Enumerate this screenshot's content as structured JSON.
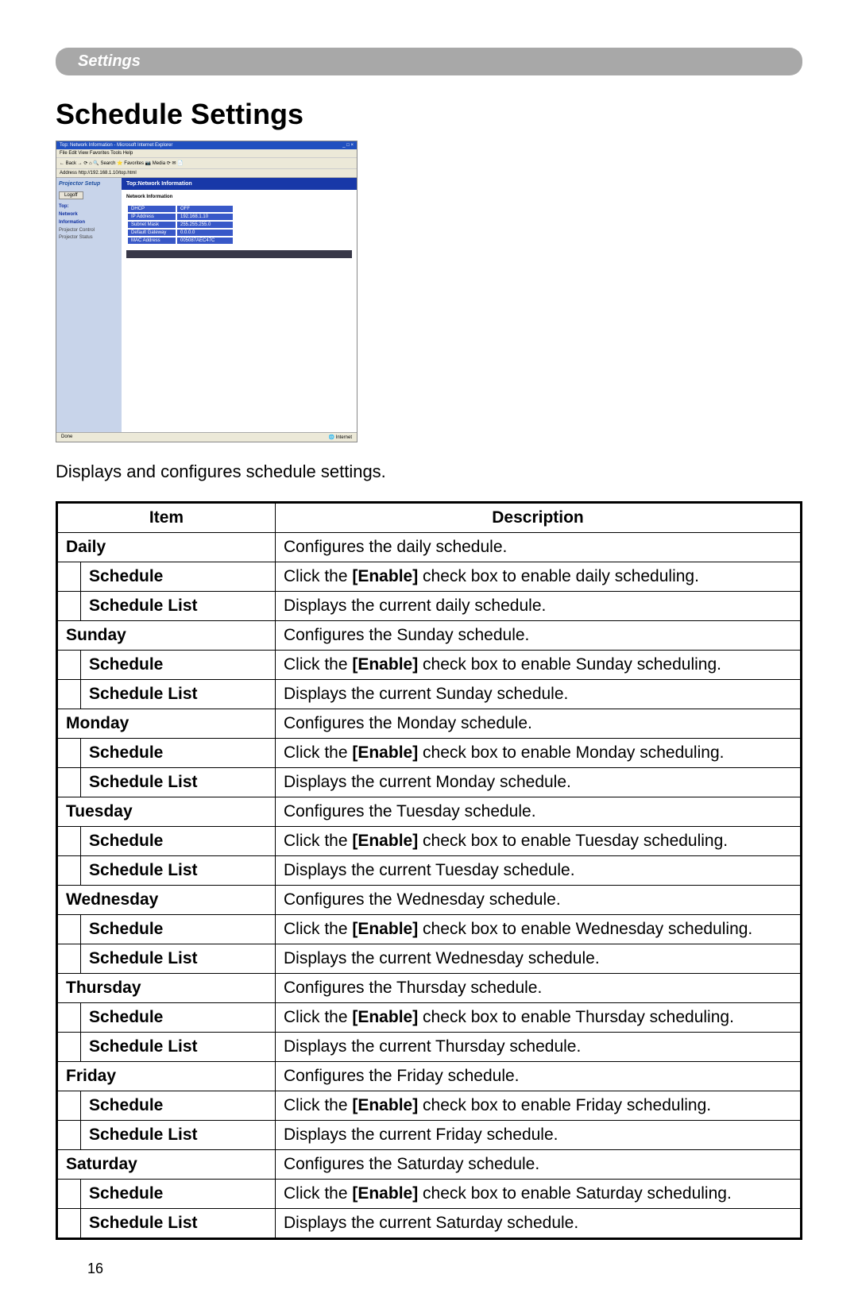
{
  "header_bar": "Settings",
  "title": "Schedule Settings",
  "intro": "Displays and configures schedule settings.",
  "screenshot": {
    "titlebar": "Top: Network Information - Microsoft Internet Explorer",
    "menubar": "File  Edit  View  Favorites  Tools  Help",
    "toolbar": "← Back  →  ⟳  ⌂  🔍 Search  ⭐ Favorites  📷 Media  ⟳  ✉  📄",
    "addressbar": "Address  http://192.168.1.10/top.html",
    "sidebar_title": "Projector Setup",
    "logoff": "Logoff",
    "nav_active_1": "Top:",
    "nav_active_2": "Network",
    "nav_active_3": "Information",
    "nav_item_1": "Projector Control",
    "nav_item_2": "Projector Status",
    "main_header": "Top:Network Information",
    "main_sub": "Network Information",
    "info_rows": [
      {
        "label": "DHCP",
        "value": "OFF"
      },
      {
        "label": "IP Address",
        "value": "192.168.1.10"
      },
      {
        "label": "Subnet Mask",
        "value": "255.255.255.0"
      },
      {
        "label": "Default Gateway",
        "value": "0.0.0.0"
      },
      {
        "label": "MAC Address",
        "value": "005087AEC47C"
      }
    ],
    "status_left": "Done",
    "status_right": "🌐 Internet"
  },
  "table": {
    "header_item": "Item",
    "header_desc": "Description",
    "enable_word": "[Enable]",
    "days": [
      {
        "name": "Daily",
        "conf": "Configures the daily schedule.",
        "sched_pre": "Click the ",
        "sched_post": " check box to enable daily scheduling.",
        "list": "Displays the current daily schedule."
      },
      {
        "name": "Sunday",
        "conf": "Configures the Sunday schedule.",
        "sched_pre": "Click the ",
        "sched_post": " check box to enable Sunday scheduling.",
        "list": "Displays the current Sunday schedule."
      },
      {
        "name": "Monday",
        "conf": "Configures the Monday schedule.",
        "sched_pre": "Click the ",
        "sched_post": " check box to enable Monday scheduling.",
        "list": "Displays the current Monday schedule."
      },
      {
        "name": "Tuesday",
        "conf": "Configures the Tuesday schedule.",
        "sched_pre": "Click the ",
        "sched_post": " check box to enable Tuesday scheduling.",
        "list": "Displays the current Tuesday schedule."
      },
      {
        "name": "Wednesday",
        "conf": "Configures the Wednesday schedule.",
        "sched_pre": "Click the ",
        "sched_post": " check box to enable Wednesday scheduling.",
        "list": "Displays the current Wednesday schedule."
      },
      {
        "name": "Thursday",
        "conf": "Configures the Thursday schedule.",
        "sched_pre": "Click the ",
        "sched_post": " check box to enable Thursday scheduling.",
        "list": "Displays the current Thursday schedule."
      },
      {
        "name": "Friday",
        "conf": "Configures the Friday schedule.",
        "sched_pre": "Click the ",
        "sched_post": " check box to enable Friday scheduling.",
        "list": "Displays the current Friday schedule."
      },
      {
        "name": "Saturday",
        "conf": "Configures the Saturday schedule.",
        "sched_pre": "Click the ",
        "sched_post": " check box to enable Saturday scheduling.",
        "list": "Displays the current Saturday schedule."
      }
    ],
    "schedule_label": "Schedule",
    "schedule_list_label": "Schedule List"
  },
  "page_number": "16"
}
